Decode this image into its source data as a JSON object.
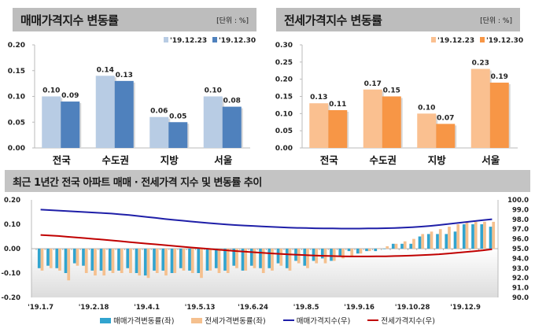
{
  "panels": {
    "sale": {
      "title": "매매가격지수 변동률",
      "unit": "[단위 : %]"
    },
    "jeonse": {
      "title": "전세가격지수 변동률",
      "unit": "[단위 : %]"
    },
    "trend": {
      "title": "최근 1년간 전국 아파트 매매 · 전세가격 지수 및 변동률 추이"
    }
  },
  "colors": {
    "sale_prev": "#b8cce4",
    "sale_curr": "#4f81bd",
    "jeonse_prev": "#fac090",
    "jeonse_curr": "#f79646",
    "trend_sale_bar": "#31a4cf",
    "trend_jeonse_bar": "#f5c08e",
    "sale_index_line": "#1f1fa8",
    "jeonse_index_line": "#c00000"
  },
  "chart_data": [
    {
      "type": "bar",
      "title": "매매가격지수 변동률",
      "categories": [
        "전국",
        "수도권",
        "지방",
        "서울"
      ],
      "series": [
        {
          "name": "'19.12.23",
          "values": [
            0.1,
            0.14,
            0.06,
            0.1
          ]
        },
        {
          "name": "'19.12.30",
          "values": [
            0.09,
            0.13,
            0.05,
            0.08
          ]
        }
      ],
      "ylim": [
        0,
        0.2
      ],
      "yticks": [
        "0.00",
        "0.05",
        "0.10",
        "0.15",
        "0.20"
      ],
      "data_labels": [
        [
          "0.10",
          "0.14",
          "0.06",
          "0.10"
        ],
        [
          "0.09",
          "0.13",
          "0.05",
          "0.08"
        ]
      ],
      "legend": "top-right"
    },
    {
      "type": "bar",
      "title": "전세가격지수 변동률",
      "categories": [
        "전국",
        "수도권",
        "지방",
        "서울"
      ],
      "series": [
        {
          "name": "'19.12.23",
          "values": [
            0.13,
            0.17,
            0.1,
            0.23
          ]
        },
        {
          "name": "'19.12.30",
          "values": [
            0.11,
            0.15,
            0.07,
            0.19
          ]
        }
      ],
      "ylim": [
        0,
        0.3
      ],
      "yticks": [
        "0.00",
        "0.05",
        "0.10",
        "0.15",
        "0.20",
        "0.25",
        "0.30"
      ],
      "data_labels": [
        [
          "0.13",
          "0.17",
          "0.10",
          "0.23"
        ],
        [
          "0.11",
          "0.15",
          "0.07",
          "0.19"
        ]
      ],
      "legend": "top-right"
    },
    {
      "type": "bar+line",
      "title": "최근 1년간 전국 아파트 매매 · 전세가격 지수 및 변동률 추이",
      "xticks": [
        "'19.1.7",
        "'19.2.18",
        "'19.4.1",
        "'19.5.13",
        "'19.6.24",
        "'19.8.5",
        "'19.9.16",
        "'19.10.28",
        "'19.12.9"
      ],
      "n_weeks": 52,
      "ylim_left": [
        -0.2,
        0.2
      ],
      "yticks_left": [
        "0.20",
        "0.10",
        "0.00",
        "-0.10",
        "-0.20"
      ],
      "ylim_right": [
        90.0,
        100.0
      ],
      "yticks_right": [
        "100.0",
        "99.0",
        "98.0",
        "97.0",
        "96.0",
        "95.0",
        "94.0",
        "93.0",
        "92.0",
        "91.0",
        "90.0"
      ],
      "series": [
        {
          "name": "매매가격변동률(좌)",
          "axis": "left",
          "kind": "bar",
          "values": [
            -0.08,
            -0.07,
            -0.08,
            -0.1,
            -0.06,
            -0.07,
            -0.09,
            -0.09,
            -0.09,
            -0.09,
            -0.08,
            -0.1,
            -0.11,
            -0.09,
            -0.09,
            -0.1,
            -0.08,
            -0.09,
            -0.1,
            -0.09,
            -0.08,
            -0.09,
            -0.07,
            -0.09,
            -0.07,
            -0.08,
            -0.08,
            -0.06,
            -0.08,
            -0.05,
            -0.07,
            -0.05,
            -0.04,
            -0.05,
            -0.03,
            -0.01,
            -0.02,
            -0.01,
            -0.01,
            0.0,
            0.02,
            0.02,
            0.02,
            0.05,
            0.06,
            0.06,
            0.06,
            0.07,
            0.1,
            0.1,
            0.1,
            0.09
          ]
        },
        {
          "name": "전세가격변동률(좌)",
          "axis": "left",
          "kind": "bar",
          "values": [
            -0.09,
            -0.08,
            -0.09,
            -0.13,
            -0.07,
            -0.1,
            -0.11,
            -0.11,
            -0.1,
            -0.1,
            -0.1,
            -0.11,
            -0.12,
            -0.1,
            -0.11,
            -0.1,
            -0.09,
            -0.1,
            -0.12,
            -0.09,
            -0.1,
            -0.1,
            -0.08,
            -0.09,
            -0.08,
            -0.1,
            -0.09,
            -0.07,
            -0.09,
            -0.06,
            -0.08,
            -0.06,
            -0.06,
            -0.05,
            -0.04,
            -0.03,
            -0.02,
            -0.01,
            0.0,
            0.01,
            0.02,
            0.03,
            0.04,
            0.06,
            0.07,
            0.08,
            0.09,
            0.1,
            0.11,
            0.11,
            0.11,
            0.11
          ]
        },
        {
          "name": "매매가격지수(우)",
          "axis": "right",
          "kind": "line",
          "values": [
            99.0,
            98.95,
            98.9,
            98.85,
            98.8,
            98.75,
            98.7,
            98.65,
            98.6,
            98.52,
            98.45,
            98.35,
            98.25,
            98.15,
            98.05,
            97.95,
            97.87,
            97.78,
            97.7,
            97.62,
            97.55,
            97.48,
            97.42,
            97.37,
            97.33,
            97.28,
            97.24,
            97.2,
            97.16,
            97.13,
            97.11,
            97.09,
            97.08,
            97.07,
            97.06,
            97.06,
            97.06,
            97.07,
            97.08,
            97.1,
            97.12,
            97.15,
            97.2,
            97.26,
            97.33,
            97.42,
            97.52,
            97.62,
            97.72,
            97.82,
            97.92,
            98.02
          ]
        },
        {
          "name": "전세가격지수(우)",
          "axis": "right",
          "kind": "line",
          "values": [
            96.4,
            96.35,
            96.3,
            96.22,
            96.15,
            96.08,
            96.0,
            95.93,
            95.85,
            95.77,
            95.68,
            95.6,
            95.52,
            95.44,
            95.36,
            95.28,
            95.2,
            95.12,
            95.05,
            94.98,
            94.9,
            94.83,
            94.76,
            94.7,
            94.64,
            94.58,
            94.52,
            94.47,
            94.42,
            94.38,
            94.34,
            94.3,
            94.27,
            94.24,
            94.22,
            94.2,
            94.2,
            94.2,
            94.21,
            94.22,
            94.24,
            94.27,
            94.3,
            94.34,
            94.38,
            94.43,
            94.5,
            94.57,
            94.65,
            94.74,
            94.83,
            94.94
          ]
        }
      ],
      "legend": "bottom"
    }
  ]
}
